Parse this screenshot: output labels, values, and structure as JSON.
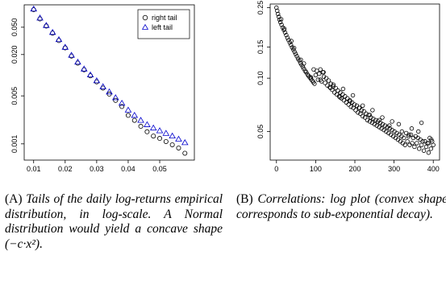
{
  "chart_data": [
    {
      "type": "scatter",
      "title": "",
      "xlabel": "",
      "ylabel": "",
      "log_y": true,
      "grid": false,
      "legend": "top-right",
      "xlim": [
        0.007,
        0.061
      ],
      "ylim": [
        0.00058,
        0.106
      ],
      "x_ticks": [
        0.01,
        0.02,
        0.03,
        0.04,
        0.05
      ],
      "x_tick_labels": [
        "0.01",
        "0.02",
        "0.03",
        "0.04",
        "0.05"
      ],
      "y_ticks": [
        0.001,
        0.005,
        0.02,
        0.05
      ],
      "y_tick_labels": [
        "0.001",
        "0.005",
        "0.020",
        "0.050"
      ],
      "series": [
        {
          "name": "right tail",
          "marker": "circle",
          "color": "#000000",
          "x": [
            0.01,
            0.012,
            0.014,
            0.016,
            0.018,
            0.02,
            0.022,
            0.024,
            0.026,
            0.028,
            0.03,
            0.032,
            0.034,
            0.036,
            0.038,
            0.04,
            0.042,
            0.044,
            0.046,
            0.048,
            0.05,
            0.052,
            0.054,
            0.056,
            0.058
          ],
          "y": [
            0.09,
            0.066,
            0.052,
            0.041,
            0.032,
            0.025,
            0.019,
            0.015,
            0.012,
            0.0098,
            0.008,
            0.0065,
            0.0053,
            0.0043,
            0.0035,
            0.0026,
            0.0022,
            0.0018,
            0.0015,
            0.0013,
            0.0012,
            0.00108,
            0.00097,
            0.00087,
            0.00073
          ]
        },
        {
          "name": "left tail",
          "marker": "triangle",
          "color": "#0000cc",
          "x": [
            0.01,
            0.012,
            0.014,
            0.016,
            0.018,
            0.02,
            0.022,
            0.024,
            0.026,
            0.028,
            0.03,
            0.032,
            0.034,
            0.036,
            0.038,
            0.04,
            0.042,
            0.044,
            0.046,
            0.048,
            0.05,
            0.052,
            0.054,
            0.056,
            0.058
          ],
          "y": [
            0.092,
            0.068,
            0.053,
            0.042,
            0.033,
            0.0255,
            0.0195,
            0.0155,
            0.0123,
            0.0101,
            0.0083,
            0.0068,
            0.0057,
            0.0047,
            0.0039,
            0.0031,
            0.0026,
            0.0022,
            0.0019,
            0.0017,
            0.00155,
            0.00142,
            0.0013,
            0.00117,
            0.00104
          ]
        }
      ]
    },
    {
      "type": "scatter",
      "title": "",
      "xlabel": "",
      "ylabel": "",
      "log_y": true,
      "grid": false,
      "legend": "none",
      "xlim": [
        -16,
        416
      ],
      "ylim": [
        0.0345,
        0.262
      ],
      "x_ticks": [
        0,
        100,
        200,
        300,
        400
      ],
      "x_tick_labels": [
        "0",
        "100",
        "200",
        "300",
        "400"
      ],
      "y_ticks": [
        0.05,
        0.1,
        0.15,
        0.25
      ],
      "y_tick_labels": [
        "0.05",
        "0.10",
        "0.15",
        "0.25"
      ],
      "series": [
        {
          "marker": "circle",
          "color": "#000000",
          "x": [
            0,
            2,
            4,
            6,
            8,
            10,
            13,
            16,
            19,
            22,
            25,
            28,
            31,
            34,
            37,
            40,
            43,
            46,
            49,
            52,
            55,
            58,
            61,
            64,
            67,
            70,
            73,
            76,
            79,
            82,
            85,
            88,
            91,
            94,
            97,
            100,
            103,
            106,
            109,
            112,
            115,
            118,
            121,
            124,
            127,
            130,
            133,
            136,
            139,
            142,
            145,
            148,
            151,
            154,
            157,
            160,
            163,
            166,
            169,
            172,
            175,
            178,
            181,
            184,
            187,
            190,
            193,
            196,
            199,
            202,
            205,
            208,
            211,
            214,
            217,
            220,
            223,
            226,
            229,
            232,
            235,
            238,
            241,
            244,
            247,
            250,
            253,
            256,
            259,
            262,
            265,
            268,
            271,
            274,
            277,
            280,
            283,
            286,
            289,
            292,
            295,
            298,
            301,
            304,
            307,
            310,
            313,
            316,
            319,
            322,
            325,
            328,
            331,
            334,
            337,
            340,
            343,
            346,
            349,
            352,
            355,
            358,
            361,
            364,
            367,
            370,
            373,
            376,
            379,
            382,
            385,
            388,
            391,
            394,
            397,
            400,
            20,
            45,
            70,
            95,
            120,
            145,
            170,
            195,
            220,
            245,
            270,
            295,
            320,
            345,
            370,
            395,
            12,
            38,
            62,
            88,
            112,
            138,
            162,
            188,
            212,
            238,
            262,
            288,
            312,
            338,
            362,
            388
          ],
          "y": [
            0.25,
            0.24,
            0.23,
            0.222,
            0.214,
            0.207,
            0.2,
            0.193,
            0.187,
            0.181,
            0.175,
            0.169,
            0.164,
            0.159,
            0.154,
            0.149,
            0.145,
            0.141,
            0.137,
            0.133,
            0.129,
            0.126,
            0.122,
            0.119,
            0.116,
            0.113,
            0.11,
            0.108,
            0.105,
            0.103,
            0.101,
            0.099,
            0.097,
            0.095,
            0.093,
            0.104,
            0.11,
            0.098,
            0.106,
            0.112,
            0.096,
            0.108,
            0.102,
            0.094,
            0.1,
            0.091,
            0.097,
            0.089,
            0.093,
            0.086,
            0.09,
            0.083,
            0.088,
            0.081,
            0.085,
            0.079,
            0.083,
            0.077,
            0.081,
            0.075,
            0.079,
            0.073,
            0.077,
            0.071,
            0.075,
            0.069,
            0.073,
            0.068,
            0.071,
            0.066,
            0.07,
            0.064,
            0.068,
            0.063,
            0.066,
            0.061,
            0.065,
            0.06,
            0.063,
            0.058,
            0.062,
            0.057,
            0.06,
            0.056,
            0.059,
            0.055,
            0.058,
            0.054,
            0.057,
            0.053,
            0.056,
            0.052,
            0.055,
            0.051,
            0.054,
            0.05,
            0.053,
            0.049,
            0.052,
            0.048,
            0.051,
            0.047,
            0.05,
            0.046,
            0.049,
            0.045,
            0.048,
            0.044,
            0.047,
            0.043,
            0.046,
            0.042,
            0.049,
            0.044,
            0.047,
            0.042,
            0.048,
            0.043,
            0.046,
            0.041,
            0.047,
            0.043,
            0.046,
            0.04,
            0.045,
            0.042,
            0.044,
            0.039,
            0.044,
            0.041,
            0.043,
            0.038,
            0.046,
            0.04,
            0.044,
            0.042,
            0.19,
            0.148,
            0.121,
            0.112,
            0.108,
            0.092,
            0.087,
            0.08,
            0.07,
            0.066,
            0.06,
            0.057,
            0.05,
            0.052,
            0.056,
            0.045,
            0.215,
            0.162,
            0.127,
            0.101,
            0.098,
            0.088,
            0.078,
            0.074,
            0.068,
            0.062,
            0.058,
            0.054,
            0.055,
            0.048,
            0.05,
            0.043
          ]
        }
      ]
    }
  ],
  "captions": {
    "a": {
      "tag": "(A)",
      "text": "Tails of the daily log-returns empirical distribution, in log-scale. A Normal distribution would yield a concave shape (−c·x²)."
    },
    "b": {
      "tag": "(B)",
      "text": "Correlations: log plot (convex shape corresponds to sub-exponential decay)."
    }
  }
}
